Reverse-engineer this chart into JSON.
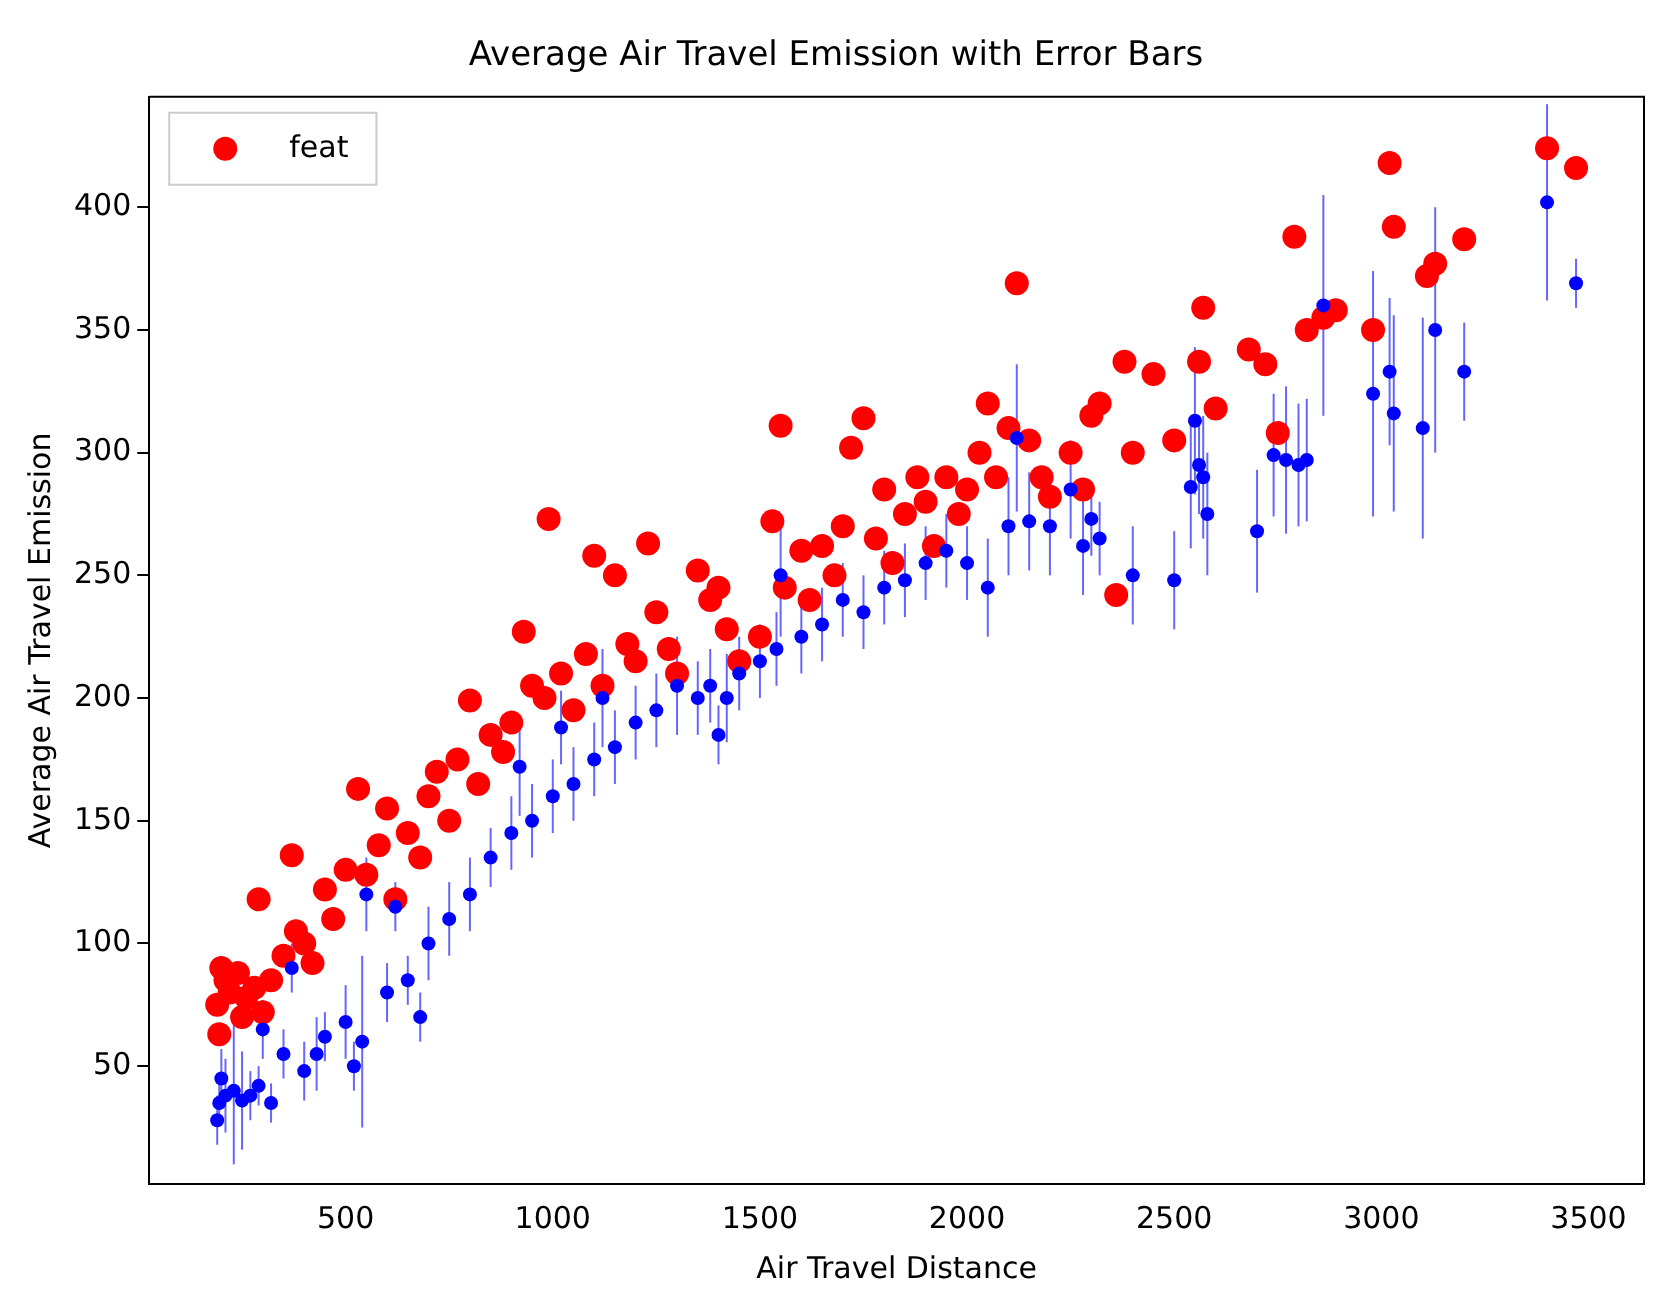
{
  "chart_data": {
    "type": "scatter",
    "title": "Average Air Travel Emission with Error Bars",
    "xlabel": "Air Travel Distance",
    "ylabel": "Average Air Travel Emission",
    "xlim": [
      26,
      3634
    ],
    "xticks": [
      500,
      1000,
      1500,
      2000,
      2500,
      3000,
      3500
    ],
    "ylim": [
      2,
      445
    ],
    "yticks": [
      50,
      100,
      150,
      200,
      250,
      300,
      350,
      400
    ],
    "grid": false,
    "legend": "top left",
    "marker": "circle",
    "series": [
      {
        "name": "feat",
        "color": "#ff0000",
        "x": [
          190,
          195,
          200,
          210,
          220,
          240,
          250,
          260,
          280,
          290,
          300,
          320,
          350,
          370,
          380,
          400,
          420,
          450,
          470,
          500,
          530,
          550,
          580,
          600,
          620,
          650,
          680,
          700,
          720,
          750,
          770,
          800,
          820,
          850,
          880,
          900,
          930,
          950,
          980,
          990,
          1020,
          1050,
          1080,
          1100,
          1120,
          1150,
          1180,
          1200,
          1230,
          1250,
          1280,
          1300,
          1350,
          1380,
          1400,
          1420,
          1450,
          1500,
          1530,
          1550,
          1560,
          1600,
          1620,
          1650,
          1680,
          1700,
          1720,
          1750,
          1780,
          1800,
          1820,
          1850,
          1880,
          1900,
          1920,
          1950,
          1980,
          2000,
          2030,
          2050,
          2070,
          2100,
          2120,
          2150,
          2180,
          2200,
          2250,
          2280,
          2300,
          2320,
          2360,
          2380,
          2400,
          2450,
          2500,
          2560,
          2570,
          2600,
          2680,
          2720,
          2750,
          2790,
          2820,
          2860,
          2890,
          2980,
          3020,
          3030,
          3110,
          3130,
          3200,
          3400,
          3470
        ],
        "values": [
          75,
          63,
          90,
          85,
          80,
          88,
          70,
          78,
          82,
          118,
          72,
          85,
          95,
          136,
          105,
          100,
          92,
          122,
          110,
          130,
          163,
          128,
          140,
          155,
          118,
          145,
          135,
          160,
          170,
          150,
          175,
          199,
          165,
          185,
          178,
          190,
          227,
          205,
          200,
          273,
          210,
          195,
          218,
          258,
          205,
          250,
          222,
          215,
          263,
          235,
          220,
          210,
          252,
          240,
          245,
          228,
          215,
          225,
          272,
          311,
          245,
          260,
          240,
          262,
          250,
          270,
          302,
          314,
          265,
          285,
          255,
          275,
          290,
          280,
          262,
          290,
          275,
          285,
          300,
          320,
          290,
          310,
          369,
          305,
          290,
          282,
          300,
          285,
          315,
          320,
          242,
          337,
          300,
          332,
          305,
          337,
          359,
          318,
          342,
          336,
          308,
          388,
          350,
          355,
          358,
          350,
          418,
          392,
          372,
          377,
          387,
          424,
          416
        ]
      },
      {
        "color": "#0000ff",
        "x": [
          190,
          195,
          200,
          210,
          230,
          250,
          270,
          290,
          300,
          320,
          350,
          370,
          400,
          430,
          450,
          500,
          520,
          540,
          550,
          600,
          620,
          650,
          680,
          700,
          750,
          800,
          850,
          900,
          920,
          950,
          1000,
          1020,
          1050,
          1100,
          1120,
          1150,
          1200,
          1250,
          1300,
          1350,
          1380,
          1400,
          1420,
          1450,
          1500,
          1540,
          1550,
          1600,
          1650,
          1700,
          1750,
          1800,
          1850,
          1900,
          1950,
          2000,
          2050,
          2100,
          2120,
          2150,
          2200,
          2250,
          2280,
          2300,
          2320,
          2400,
          2500,
          2540,
          2550,
          2560,
          2570,
          2580,
          2700,
          2740,
          2770,
          2800,
          2820,
          2860,
          2980,
          3020,
          3030,
          3100,
          3130,
          3200,
          3400,
          3470
        ],
        "values": [
          28,
          35,
          45,
          38,
          40,
          36,
          38,
          42,
          65,
          35,
          55,
          90,
          48,
          55,
          62,
          68,
          50,
          60,
          120,
          80,
          115,
          85,
          70,
          100,
          110,
          120,
          135,
          145,
          172,
          150,
          160,
          188,
          165,
          175,
          200,
          180,
          190,
          195,
          205,
          200,
          205,
          185,
          200,
          210,
          215,
          220,
          250,
          225,
          230,
          240,
          235,
          245,
          248,
          255,
          260,
          255,
          245,
          270,
          306,
          272,
          270,
          285,
          262,
          273,
          265,
          250,
          248,
          286,
          313,
          295,
          290,
          275,
          268,
          299,
          297,
          295,
          297,
          360,
          324,
          333,
          316,
          310,
          350,
          333,
          402,
          369
        ],
        "errors": [
          10,
          8,
          12,
          15,
          30,
          20,
          10,
          8,
          12,
          8,
          10,
          10,
          12,
          15,
          10,
          15,
          10,
          35,
          15,
          12,
          10,
          10,
          10,
          15,
          15,
          15,
          12,
          15,
          20,
          15,
          15,
          15,
          15,
          15,
          20,
          15,
          15,
          15,
          20,
          15,
          15,
          12,
          18,
          15,
          15,
          15,
          25,
          15,
          15,
          15,
          15,
          15,
          15,
          15,
          15,
          15,
          20,
          20,
          30,
          20,
          20,
          20,
          20,
          15,
          15,
          20,
          20,
          25,
          30,
          20,
          25,
          25,
          25,
          25,
          30,
          25,
          25,
          45,
          50,
          30,
          40,
          45,
          50,
          20,
          40,
          10
        ]
      }
    ]
  }
}
